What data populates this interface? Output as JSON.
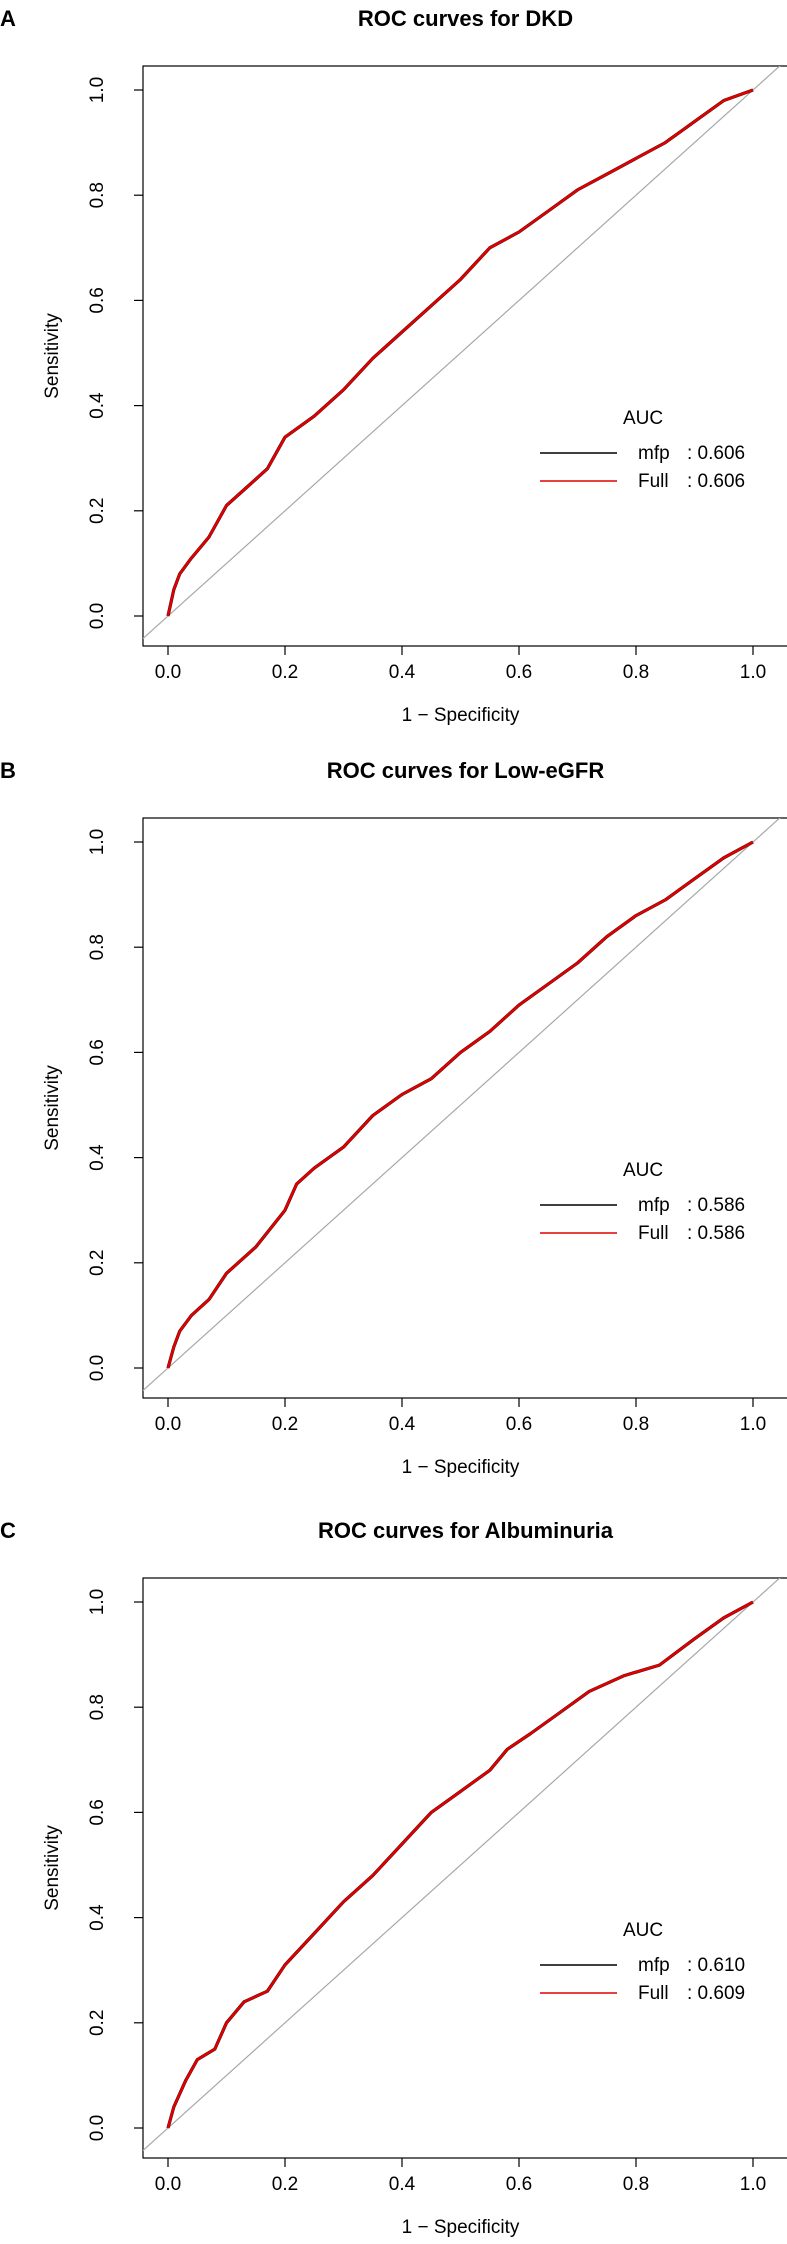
{
  "colors": {
    "mfp": "#000000",
    "full": "#e00000",
    "diagonal": "#a8a8a8",
    "axis": "#000000"
  },
  "chart_data": [
    {
      "type": "line",
      "panel_label": "A",
      "title": "ROC curves for DKD",
      "xlabel": "1 − Specificity",
      "ylabel": "Sensitivity",
      "xlim": [
        0,
        1
      ],
      "ylim": [
        0,
        1
      ],
      "xticks": [
        "0.0",
        "0.2",
        "0.4",
        "0.6",
        "0.8",
        "1.0"
      ],
      "yticks": [
        "0.0",
        "0.2",
        "0.4",
        "0.6",
        "0.8",
        "1.0"
      ],
      "legend_title": "AUC",
      "legend": [
        {
          "name": "mfp",
          "value": ": 0.606"
        },
        {
          "name": "Full",
          "value": ": 0.606"
        }
      ],
      "series": [
        {
          "name": "mfp",
          "points": [
            [
              0,
              0
            ],
            [
              0.01,
              0.05
            ],
            [
              0.02,
              0.08
            ],
            [
              0.04,
              0.11
            ],
            [
              0.07,
              0.15
            ],
            [
              0.1,
              0.21
            ],
            [
              0.14,
              0.25
            ],
            [
              0.17,
              0.28
            ],
            [
              0.2,
              0.34
            ],
            [
              0.25,
              0.38
            ],
            [
              0.3,
              0.43
            ],
            [
              0.35,
              0.49
            ],
            [
              0.4,
              0.54
            ],
            [
              0.45,
              0.59
            ],
            [
              0.5,
              0.64
            ],
            [
              0.55,
              0.7
            ],
            [
              0.6,
              0.73
            ],
            [
              0.65,
              0.77
            ],
            [
              0.7,
              0.81
            ],
            [
              0.75,
              0.84
            ],
            [
              0.8,
              0.87
            ],
            [
              0.85,
              0.9
            ],
            [
              0.9,
              0.94
            ],
            [
              0.95,
              0.98
            ],
            [
              1,
              1
            ]
          ]
        },
        {
          "name": "Full",
          "points": [
            [
              0,
              0
            ],
            [
              0.01,
              0.05
            ],
            [
              0.02,
              0.08
            ],
            [
              0.04,
              0.11
            ],
            [
              0.07,
              0.15
            ],
            [
              0.1,
              0.21
            ],
            [
              0.14,
              0.25
            ],
            [
              0.17,
              0.28
            ],
            [
              0.2,
              0.34
            ],
            [
              0.25,
              0.38
            ],
            [
              0.3,
              0.43
            ],
            [
              0.35,
              0.49
            ],
            [
              0.4,
              0.54
            ],
            [
              0.45,
              0.59
            ],
            [
              0.5,
              0.64
            ],
            [
              0.55,
              0.7
            ],
            [
              0.6,
              0.73
            ],
            [
              0.65,
              0.77
            ],
            [
              0.7,
              0.81
            ],
            [
              0.75,
              0.84
            ],
            [
              0.8,
              0.87
            ],
            [
              0.85,
              0.9
            ],
            [
              0.9,
              0.94
            ],
            [
              0.95,
              0.98
            ],
            [
              1,
              1
            ]
          ]
        }
      ]
    },
    {
      "type": "line",
      "panel_label": "B",
      "title": "ROC curves for Low-eGFR",
      "xlabel": "1 − Specificity",
      "ylabel": "Sensitivity",
      "xlim": [
        0,
        1
      ],
      "ylim": [
        0,
        1
      ],
      "xticks": [
        "0.0",
        "0.2",
        "0.4",
        "0.6",
        "0.8",
        "1.0"
      ],
      "yticks": [
        "0.0",
        "0.2",
        "0.4",
        "0.6",
        "0.8",
        "1.0"
      ],
      "legend_title": "AUC",
      "legend": [
        {
          "name": "mfp",
          "value": ": 0.586"
        },
        {
          "name": "Full",
          "value": ": 0.586"
        }
      ],
      "series": [
        {
          "name": "mfp",
          "points": [
            [
              0,
              0
            ],
            [
              0.01,
              0.04
            ],
            [
              0.02,
              0.07
            ],
            [
              0.04,
              0.1
            ],
            [
              0.07,
              0.13
            ],
            [
              0.1,
              0.18
            ],
            [
              0.15,
              0.23
            ],
            [
              0.2,
              0.3
            ],
            [
              0.22,
              0.35
            ],
            [
              0.25,
              0.38
            ],
            [
              0.3,
              0.42
            ],
            [
              0.35,
              0.48
            ],
            [
              0.4,
              0.52
            ],
            [
              0.45,
              0.55
            ],
            [
              0.5,
              0.6
            ],
            [
              0.55,
              0.64
            ],
            [
              0.6,
              0.69
            ],
            [
              0.65,
              0.73
            ],
            [
              0.7,
              0.77
            ],
            [
              0.75,
              0.82
            ],
            [
              0.8,
              0.86
            ],
            [
              0.85,
              0.89
            ],
            [
              0.9,
              0.93
            ],
            [
              0.95,
              0.97
            ],
            [
              1,
              1
            ]
          ]
        },
        {
          "name": "Full",
          "points": [
            [
              0,
              0
            ],
            [
              0.01,
              0.04
            ],
            [
              0.02,
              0.07
            ],
            [
              0.04,
              0.1
            ],
            [
              0.07,
              0.13
            ],
            [
              0.1,
              0.18
            ],
            [
              0.15,
              0.23
            ],
            [
              0.2,
              0.3
            ],
            [
              0.22,
              0.35
            ],
            [
              0.25,
              0.38
            ],
            [
              0.3,
              0.42
            ],
            [
              0.35,
              0.48
            ],
            [
              0.4,
              0.52
            ],
            [
              0.45,
              0.55
            ],
            [
              0.5,
              0.6
            ],
            [
              0.55,
              0.64
            ],
            [
              0.6,
              0.69
            ],
            [
              0.65,
              0.73
            ],
            [
              0.7,
              0.77
            ],
            [
              0.75,
              0.82
            ],
            [
              0.8,
              0.86
            ],
            [
              0.85,
              0.89
            ],
            [
              0.9,
              0.93
            ],
            [
              0.95,
              0.97
            ],
            [
              1,
              1
            ]
          ]
        }
      ]
    },
    {
      "type": "line",
      "panel_label": "C",
      "title": "ROC curves for Albuminuria",
      "xlabel": "1 − Specificity",
      "ylabel": "Sensitivity",
      "xlim": [
        0,
        1
      ],
      "ylim": [
        0,
        1
      ],
      "xticks": [
        "0.0",
        "0.2",
        "0.4",
        "0.6",
        "0.8",
        "1.0"
      ],
      "yticks": [
        "0.0",
        "0.2",
        "0.4",
        "0.6",
        "0.8",
        "1.0"
      ],
      "legend_title": "AUC",
      "legend": [
        {
          "name": "mfp",
          "value": ": 0.610"
        },
        {
          "name": "Full",
          "value": ": 0.609"
        }
      ],
      "series": [
        {
          "name": "mfp",
          "points": [
            [
              0,
              0
            ],
            [
              0.01,
              0.04
            ],
            [
              0.03,
              0.09
            ],
            [
              0.05,
              0.13
            ],
            [
              0.08,
              0.15
            ],
            [
              0.1,
              0.2
            ],
            [
              0.13,
              0.24
            ],
            [
              0.17,
              0.26
            ],
            [
              0.2,
              0.31
            ],
            [
              0.25,
              0.37
            ],
            [
              0.3,
              0.43
            ],
            [
              0.35,
              0.48
            ],
            [
              0.4,
              0.54
            ],
            [
              0.45,
              0.6
            ],
            [
              0.5,
              0.64
            ],
            [
              0.55,
              0.68
            ],
            [
              0.58,
              0.72
            ],
            [
              0.62,
              0.75
            ],
            [
              0.67,
              0.79
            ],
            [
              0.72,
              0.83
            ],
            [
              0.78,
              0.86
            ],
            [
              0.84,
              0.88
            ],
            [
              0.9,
              0.93
            ],
            [
              0.95,
              0.97
            ],
            [
              1,
              1
            ]
          ]
        },
        {
          "name": "Full",
          "points": [
            [
              0,
              0
            ],
            [
              0.01,
              0.04
            ],
            [
              0.03,
              0.09
            ],
            [
              0.05,
              0.13
            ],
            [
              0.08,
              0.15
            ],
            [
              0.1,
              0.2
            ],
            [
              0.13,
              0.24
            ],
            [
              0.17,
              0.26
            ],
            [
              0.2,
              0.31
            ],
            [
              0.25,
              0.37
            ],
            [
              0.3,
              0.43
            ],
            [
              0.35,
              0.48
            ],
            [
              0.4,
              0.54
            ],
            [
              0.45,
              0.6
            ],
            [
              0.5,
              0.64
            ],
            [
              0.55,
              0.68
            ],
            [
              0.58,
              0.72
            ],
            [
              0.62,
              0.75
            ],
            [
              0.67,
              0.79
            ],
            [
              0.72,
              0.83
            ],
            [
              0.78,
              0.86
            ],
            [
              0.84,
              0.88
            ],
            [
              0.9,
              0.93
            ],
            [
              0.95,
              0.97
            ],
            [
              1,
              1
            ]
          ]
        }
      ]
    }
  ]
}
